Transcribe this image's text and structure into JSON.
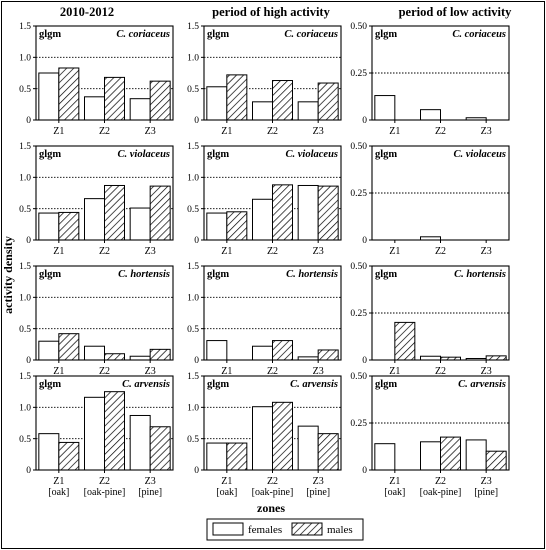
{
  "figure": {
    "ylabel": "activity density",
    "xlabel": "zones",
    "legend": {
      "placement": "bottom-center",
      "entries": [
        "females",
        "males"
      ]
    },
    "columns": [
      "2010-2012",
      "period of high activity",
      "period of low activity"
    ]
  },
  "chart_data": [
    {
      "type": "bar",
      "column": "2010-2012",
      "species": "C. coriaceus",
      "tag": "glgm",
      "ylim": [
        0,
        1.5
      ],
      "yticks": [
        "0",
        "0.5",
        "1.0",
        "1.5"
      ],
      "ref_lines": [
        0.5,
        1.0
      ],
      "categories": [
        "Z1",
        "Z2",
        "Z3"
      ],
      "series": [
        {
          "name": "females",
          "values": [
            0.75,
            0.37,
            0.34
          ]
        },
        {
          "name": "males",
          "values": [
            0.83,
            0.68,
            0.62
          ]
        }
      ]
    },
    {
      "type": "bar",
      "column": "period of high activity",
      "species": "C. coriaceus",
      "tag": "glgm",
      "ylim": [
        0,
        1.5
      ],
      "yticks": [
        "0",
        "0.5",
        "1.0",
        "1.5"
      ],
      "ref_lines": [
        0.5,
        1.0
      ],
      "categories": [
        "Z1",
        "Z2",
        "Z3"
      ],
      "series": [
        {
          "name": "females",
          "values": [
            0.53,
            0.29,
            0.29
          ]
        },
        {
          "name": "males",
          "values": [
            0.72,
            0.63,
            0.59
          ]
        }
      ]
    },
    {
      "type": "bar",
      "column": "period of low activity",
      "species": "C. coriaceus",
      "tag": "glgm",
      "ylim": [
        0,
        0.5
      ],
      "yticks": [
        "0",
        "0.25",
        "0.50"
      ],
      "ref_lines": [
        0.25
      ],
      "categories": [
        "Z1",
        "Z2",
        "Z3"
      ],
      "series": [
        {
          "name": "females",
          "values": [
            0.13,
            0.055,
            0.012
          ]
        },
        {
          "name": "males",
          "values": [
            0,
            0,
            0
          ]
        }
      ]
    },
    {
      "type": "bar",
      "column": "2010-2012",
      "species": "C. violaceus",
      "tag": "glgm",
      "ylim": [
        0,
        1.5
      ],
      "yticks": [
        "0",
        "0.5",
        "1.0",
        "1.5"
      ],
      "ref_lines": [
        0.5,
        1.0
      ],
      "categories": [
        "Z1",
        "Z2",
        "Z3"
      ],
      "series": [
        {
          "name": "females",
          "values": [
            0.43,
            0.66,
            0.51
          ]
        },
        {
          "name": "males",
          "values": [
            0.44,
            0.87,
            0.86
          ]
        }
      ]
    },
    {
      "type": "bar",
      "column": "period of high activity",
      "species": "C. violaceus",
      "tag": "glgm",
      "ylim": [
        0,
        1.5
      ],
      "yticks": [
        "0",
        "0.5",
        "1.0",
        "1.5"
      ],
      "ref_lines": [
        0.5,
        1.0
      ],
      "categories": [
        "Z1",
        "Z2",
        "Z3"
      ],
      "series": [
        {
          "name": "females",
          "values": [
            0.43,
            0.65,
            0.87
          ]
        },
        {
          "name": "males",
          "values": [
            0.45,
            0.88,
            0.86
          ]
        }
      ]
    },
    {
      "type": "bar",
      "column": "period of low activity",
      "species": "C. violaceus",
      "tag": "glgm",
      "ylim": [
        0,
        0.5
      ],
      "yticks": [
        "0",
        "0.25",
        "0.50"
      ],
      "ref_lines": [
        0.25
      ],
      "categories": [
        "Z1",
        "Z2",
        "Z3"
      ],
      "series": [
        {
          "name": "females",
          "values": [
            0,
            0.017,
            0
          ]
        },
        {
          "name": "males",
          "values": [
            0,
            0,
            0
          ]
        }
      ]
    },
    {
      "type": "bar",
      "column": "2010-2012",
      "species": "C. hortensis",
      "tag": "glgm",
      "ylim": [
        0,
        1.5
      ],
      "yticks": [
        "0",
        "0.5",
        "1.0",
        "1.5"
      ],
      "ref_lines": [
        0.5,
        1.0
      ],
      "categories": [
        "Z1",
        "Z2",
        "Z3"
      ],
      "series": [
        {
          "name": "females",
          "values": [
            0.3,
            0.22,
            0.06
          ]
        },
        {
          "name": "males",
          "values": [
            0.42,
            0.1,
            0.17
          ]
        }
      ]
    },
    {
      "type": "bar",
      "column": "period of high activity",
      "species": "C. hortensis",
      "tag": "glgm",
      "ylim": [
        0,
        1.5
      ],
      "yticks": [
        "0",
        "0.5",
        "1.0",
        "1.5"
      ],
      "ref_lines": [
        0.5,
        1.0
      ],
      "categories": [
        "Z1",
        "Z2",
        "Z3"
      ],
      "series": [
        {
          "name": "females",
          "values": [
            0.31,
            0.22,
            0.05
          ]
        },
        {
          "name": "males",
          "values": [
            0,
            0.31,
            0.16
          ]
        }
      ]
    },
    {
      "type": "bar",
      "column": "period of low activity",
      "species": "C. hortensis",
      "tag": "glgm",
      "ylim": [
        0,
        0.5
      ],
      "yticks": [
        "0",
        "0.25",
        "0.50"
      ],
      "ref_lines": [
        0.25
      ],
      "categories": [
        "Z1",
        "Z2",
        "Z3"
      ],
      "series": [
        {
          "name": "females",
          "values": [
            0,
            0.02,
            0.008
          ]
        },
        {
          "name": "males",
          "values": [
            0.2,
            0.015,
            0.022
          ]
        }
      ]
    },
    {
      "type": "bar",
      "column": "2010-2012",
      "species": "C. arvensis",
      "tag": "glgm",
      "ylim": [
        0,
        1.5
      ],
      "yticks": [
        "0",
        "0.5",
        "1.0",
        "1.5"
      ],
      "ref_lines": [
        0.5,
        1.0
      ],
      "categories": [
        "Z1",
        "Z2",
        "Z3"
      ],
      "sublabels": [
        "[oak]",
        "[oak-pine]",
        "[pine]"
      ],
      "series": [
        {
          "name": "females",
          "values": [
            0.58,
            1.16,
            0.87
          ]
        },
        {
          "name": "males",
          "values": [
            0.44,
            1.25,
            0.69
          ]
        }
      ]
    },
    {
      "type": "bar",
      "column": "period of high activity",
      "species": "C. arvensis",
      "tag": "glgm",
      "ylim": [
        0,
        1.5
      ],
      "yticks": [
        "0",
        "0.5",
        "1.0",
        "1.5"
      ],
      "ref_lines": [
        0.5,
        1.0
      ],
      "categories": [
        "Z1",
        "Z2",
        "Z3"
      ],
      "sublabels": [
        "[oak]",
        "[oak-pine]",
        "[pine]"
      ],
      "series": [
        {
          "name": "females",
          "values": [
            0.43,
            1.01,
            0.7
          ]
        },
        {
          "name": "males",
          "values": [
            0.43,
            1.08,
            0.58
          ]
        }
      ]
    },
    {
      "type": "bar",
      "column": "period of low activity",
      "species": "C. arvensis",
      "tag": "glgm",
      "ylim": [
        0,
        0.5
      ],
      "yticks": [
        "0",
        "0.25",
        "0.50"
      ],
      "ref_lines": [
        0.25
      ],
      "categories": [
        "Z1",
        "Z2",
        "Z3"
      ],
      "sublabels": [
        "[oak]",
        "[oak-pine]",
        "[pine]"
      ],
      "series": [
        {
          "name": "females",
          "values": [
            0.14,
            0.15,
            0.16
          ]
        },
        {
          "name": "males",
          "values": [
            0,
            0.175,
            0.1
          ]
        }
      ]
    }
  ]
}
